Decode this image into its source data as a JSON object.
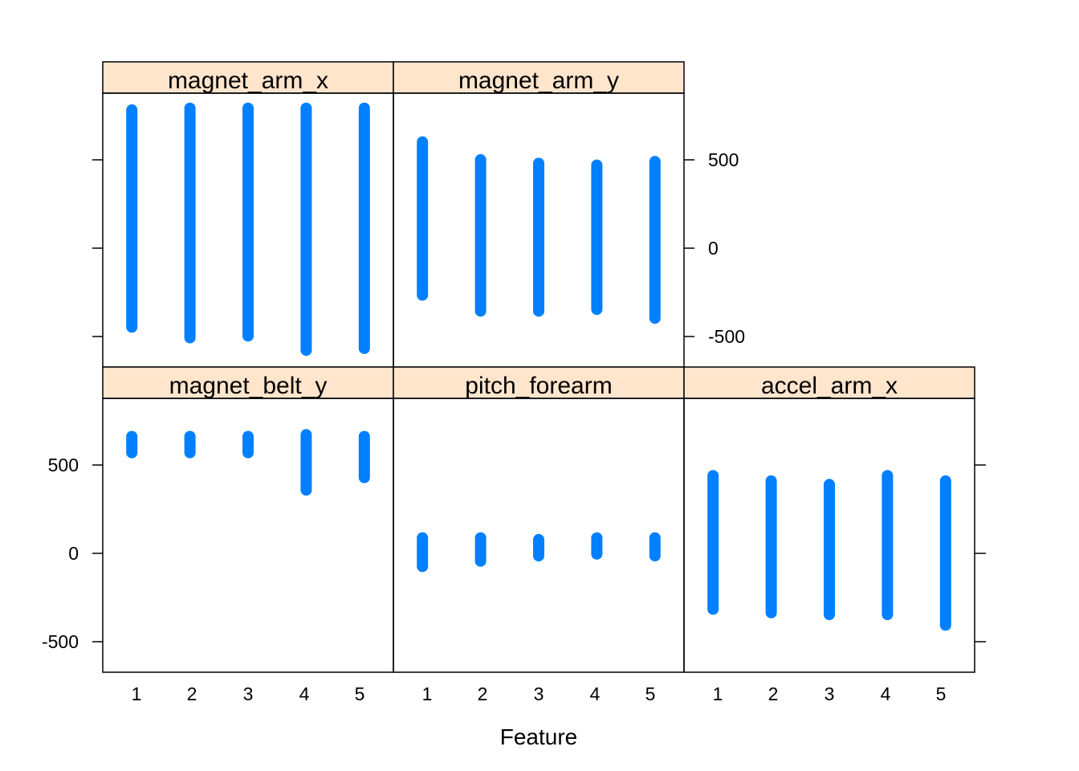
{
  "chart_data": {
    "type": "strip",
    "xlabel": "Feature",
    "ylabel": "",
    "categories": [
      "1",
      "2",
      "3",
      "4",
      "5"
    ],
    "ylim": [
      -670,
      870
    ],
    "yticks": [
      -500,
      0,
      500
    ],
    "ytick_labels": [
      "-500",
      "0",
      "500"
    ],
    "colors": {
      "points": "#0080ff",
      "strip": "#ffe5cc",
      "frame": "#000000"
    },
    "panels": [
      {
        "name": "magnet_arm_x",
        "ranges": [
          [
            -450,
            780
          ],
          [
            -510,
            790
          ],
          [
            -500,
            790
          ],
          [
            -580,
            790
          ],
          [
            -570,
            790
          ]
        ]
      },
      {
        "name": "magnet_arm_y",
        "ranges": [
          [
            -270,
            600
          ],
          [
            -360,
            500
          ],
          [
            -360,
            480
          ],
          [
            -350,
            470
          ],
          [
            -400,
            490
          ]
        ]
      },
      {
        "name": "magnet_belt_y",
        "ranges": [
          [
            560,
            660
          ],
          [
            560,
            660
          ],
          [
            560,
            660
          ],
          [
            350,
            670
          ],
          [
            420,
            660
          ]
        ]
      },
      {
        "name": "pitch_forearm",
        "ranges": [
          [
            -80,
            90
          ],
          [
            -50,
            90
          ],
          [
            -20,
            80
          ],
          [
            -10,
            90
          ],
          [
            -20,
            90
          ]
        ]
      },
      {
        "name": "accel_arm_x",
        "ranges": [
          [
            -320,
            440
          ],
          [
            -340,
            410
          ],
          [
            -350,
            390
          ],
          [
            -350,
            440
          ],
          [
            -410,
            410
          ]
        ]
      }
    ]
  }
}
